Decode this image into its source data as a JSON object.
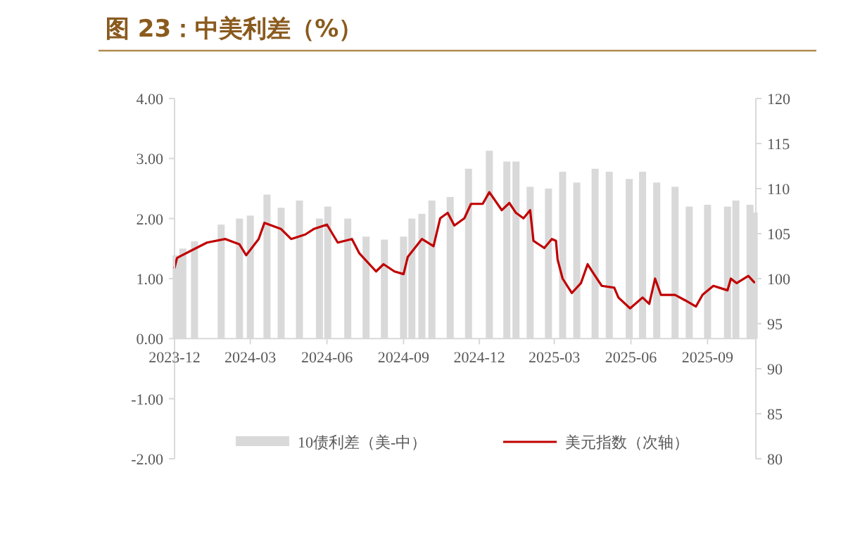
{
  "chart_data": {
    "type": "bar",
    "title": "图 23：中美利差（%）",
    "xlim": [
      "2023-12-01",
      "2025-10-29"
    ],
    "xticks": [
      "2023-12",
      "2024-03",
      "2024-06",
      "2024-09",
      "2024-12",
      "2025-03",
      "2025-06",
      "2025-09"
    ],
    "ylim": [
      -2,
      4
    ],
    "yticks": [
      {
        "value": -2,
        "label": "-2.00"
      },
      {
        "value": -1,
        "label": "-1.00"
      },
      {
        "value": 0,
        "label": "0.00"
      },
      {
        "value": 1,
        "label": "1.00"
      },
      {
        "value": 2,
        "label": "2.00"
      },
      {
        "value": 3,
        "label": "3.00"
      },
      {
        "value": 4,
        "label": "4.00"
      }
    ],
    "y2lim": [
      80,
      120
    ],
    "y2ticks": [
      80,
      85,
      90,
      95,
      100,
      105,
      110,
      115,
      120
    ],
    "legend": "bottom",
    "series": [
      {
        "name": "10债利差（美-中）",
        "color": "#d9d9d9",
        "x": [
          "2023-12-03",
          "2023-12-11",
          "2023-12-25",
          "2024-01-26",
          "2024-02-17",
          "2024-03-01",
          "2024-03-21",
          "2024-04-07",
          "2024-04-29",
          "2024-05-23",
          "2024-06-02",
          "2024-06-26",
          "2024-07-18",
          "2024-08-09",
          "2024-09-01",
          "2024-09-11",
          "2024-09-23",
          "2024-10-05",
          "2024-10-27",
          "2024-11-18",
          "2024-12-13",
          "2025-01-03",
          "2025-01-14",
          "2025-01-31",
          "2025-02-22",
          "2025-03-11",
          "2025-03-28",
          "2025-04-19",
          "2025-05-06",
          "2025-05-30",
          "2025-06-15",
          "2025-07-02",
          "2025-07-24",
          "2025-08-10",
          "2025-09-01",
          "2025-09-25",
          "2025-10-05",
          "2025-10-22",
          "2025-10-27"
        ],
        "values": [
          1.39,
          1.5,
          1.62,
          1.9,
          2.0,
          2.05,
          2.4,
          2.18,
          2.3,
          2.0,
          2.2,
          2.0,
          1.7,
          1.65,
          1.7,
          2.0,
          2.08,
          2.3,
          2.36,
          2.83,
          3.13,
          2.95,
          2.95,
          2.53,
          2.5,
          2.78,
          2.6,
          2.83,
          2.78,
          2.66,
          2.78,
          2.6,
          2.53,
          2.2,
          2.23,
          2.2,
          2.3,
          2.23,
          2.1
        ]
      },
      {
        "name": "美元指数（次轴）",
        "type": "line",
        "axis": "y2",
        "color": "#c00000",
        "x": [
          "2023-12-01",
          "2023-12-04",
          "2023-12-25",
          "2024-01-09",
          "2024-01-31",
          "2024-02-17",
          "2024-02-25",
          "2024-03-11",
          "2024-03-18",
          "2024-04-07",
          "2024-04-19",
          "2024-05-06",
          "2024-05-16",
          "2024-06-01",
          "2024-06-14",
          "2024-07-01",
          "2024-07-10",
          "2024-07-30",
          "2024-08-08",
          "2024-08-21",
          "2024-09-01",
          "2024-09-06",
          "2024-09-23",
          "2024-10-07",
          "2024-10-15",
          "2024-10-24",
          "2024-11-01",
          "2024-11-13",
          "2024-11-21",
          "2024-12-05",
          "2024-12-13",
          "2024-12-28",
          "2025-01-06",
          "2025-01-14",
          "2025-01-23",
          "2025-01-31",
          "2025-02-04",
          "2025-02-17",
          "2025-02-26",
          "2025-03-03",
          "2025-03-05",
          "2025-03-11",
          "2025-03-22",
          "2025-04-02",
          "2025-04-10",
          "2025-04-19",
          "2025-04-27",
          "2025-05-12",
          "2025-05-17",
          "2025-05-31",
          "2025-06-15",
          "2025-06-23",
          "2025-06-30",
          "2025-07-07",
          "2025-07-24",
          "2025-08-05",
          "2025-08-18",
          "2025-08-26",
          "2025-09-08",
          "2025-09-25",
          "2025-09-29",
          "2025-10-06",
          "2025-10-20",
          "2025-10-27"
        ],
        "values": [
          101.2,
          102.3,
          103.3,
          104.0,
          104.4,
          103.8,
          102.6,
          104.4,
          106.2,
          105.5,
          104.4,
          104.9,
          105.5,
          106.0,
          104.0,
          104.4,
          102.8,
          100.8,
          101.6,
          100.8,
          100.5,
          102.4,
          104.4,
          103.6,
          106.7,
          107.3,
          105.9,
          106.7,
          108.3,
          108.3,
          109.6,
          107.6,
          108.4,
          107.3,
          106.7,
          107.6,
          104.2,
          103.4,
          104.4,
          104.2,
          102.1,
          100.0,
          98.4,
          99.5,
          101.6,
          100.3,
          99.2,
          99.0,
          97.9,
          96.7,
          97.9,
          97.2,
          100.0,
          98.2,
          98.2,
          97.6,
          96.9,
          98.2,
          99.2,
          98.7,
          100.0,
          99.5,
          100.3,
          99.6
        ]
      }
    ]
  }
}
